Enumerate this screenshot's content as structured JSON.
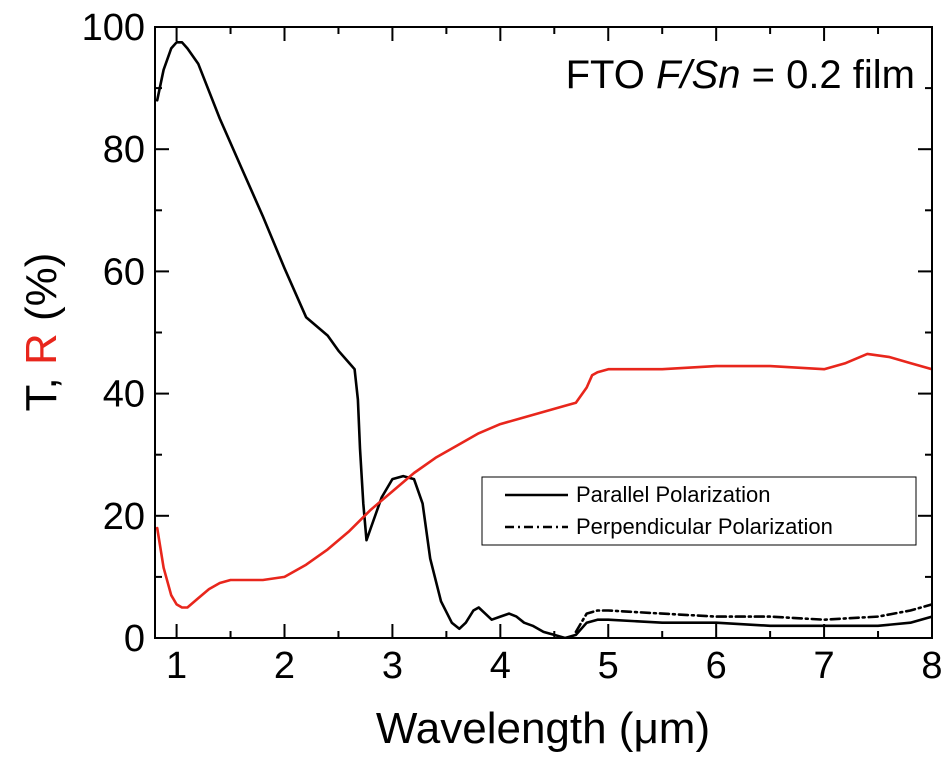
{
  "chart_data": {
    "type": "line",
    "title": "",
    "annotation": {
      "prefix": "FTO ",
      "italic": "F/Sn",
      "suffix": " = 0.2 film"
    },
    "xlabel": "Wavelength (μm)",
    "ylabel": {
      "part1": "T, ",
      "part2": "R",
      "part3": " (%)"
    },
    "xlim": [
      0.8,
      8
    ],
    "ylim": [
      0,
      100
    ],
    "xticks": [
      1,
      2,
      3,
      4,
      5,
      6,
      7,
      8
    ],
    "yticks": [
      0,
      20,
      40,
      60,
      80,
      100
    ],
    "xtick_labels": [
      "1",
      "2",
      "3",
      "4",
      "5",
      "6",
      "7",
      "8"
    ],
    "ytick_labels": [
      "0",
      "20",
      "40",
      "60",
      "80",
      "100"
    ],
    "legend": {
      "position": "lower-right",
      "entries": [
        "Parallel Polarization",
        "Perpendicular Polarization"
      ]
    },
    "colors": {
      "transmission": "#000000",
      "reflection": "#e8261c"
    },
    "series": [
      {
        "name": "Parallel Polarization",
        "quantity": "T",
        "style": "solid",
        "x": [
          0.82,
          0.88,
          0.95,
          1.0,
          1.05,
          1.1,
          1.2,
          1.4,
          1.6,
          1.8,
          2.0,
          2.2,
          2.4,
          2.5,
          2.6,
          2.65,
          2.68,
          2.7,
          2.73,
          2.76,
          2.8,
          2.9,
          3.0,
          3.1,
          3.2,
          3.28,
          3.35,
          3.45,
          3.55,
          3.62,
          3.68,
          3.75,
          3.8,
          3.86,
          3.92,
          4.0,
          4.08,
          4.15,
          4.22,
          4.3,
          4.4,
          4.5,
          4.6,
          4.7,
          4.75,
          4.8,
          4.9,
          5.0,
          5.5,
          6.0,
          6.5,
          7.0,
          7.5,
          7.8,
          8.0
        ],
        "y": [
          88,
          93,
          96.5,
          97.5,
          97.5,
          96.5,
          94,
          85,
          77,
          69,
          60.5,
          52.5,
          49.5,
          47,
          45,
          44,
          39,
          31,
          22,
          16,
          18,
          23,
          26,
          26.5,
          26,
          22,
          13,
          6,
          2.5,
          1.5,
          2.5,
          4.5,
          5,
          4,
          3,
          3.5,
          4,
          3.5,
          2.5,
          2,
          1,
          0.5,
          0,
          0.5,
          1.5,
          2.5,
          3,
          3,
          2.5,
          2.5,
          2,
          2,
          2,
          2.5,
          3.5
        ]
      },
      {
        "name": "Perpendicular Polarization",
        "quantity": "T",
        "style": "dash-dot",
        "x": [
          4.7,
          4.75,
          4.8,
          4.9,
          5.0,
          5.5,
          6.0,
          6.5,
          7.0,
          7.5,
          7.8,
          8.0
        ],
        "y": [
          1,
          2.5,
          4,
          4.5,
          4.5,
          4,
          3.5,
          3.5,
          3,
          3.5,
          4.5,
          5.5
        ]
      },
      {
        "name": "",
        "quantity": "R",
        "style": "solid",
        "x": [
          0.82,
          0.88,
          0.95,
          1.0,
          1.05,
          1.1,
          1.2,
          1.3,
          1.4,
          1.5,
          1.6,
          1.8,
          2.0,
          2.2,
          2.4,
          2.6,
          2.8,
          3.0,
          3.2,
          3.4,
          3.6,
          3.8,
          4.0,
          4.2,
          4.4,
          4.6,
          4.7,
          4.8,
          4.85,
          4.9,
          5.0,
          5.5,
          6.0,
          6.5,
          7.0,
          7.2,
          7.4,
          7.6,
          7.8,
          8.0
        ],
        "y": [
          18,
          11.5,
          7,
          5.5,
          5,
          5,
          6.5,
          8,
          9,
          9.5,
          9.5,
          9.5,
          10,
          12,
          14.5,
          17.5,
          21,
          24,
          27,
          29.5,
          31.5,
          33.5,
          35,
          36,
          37,
          38,
          38.5,
          41,
          43,
          43.5,
          44,
          44,
          44.5,
          44.5,
          44,
          45,
          46.5,
          46,
          45,
          44
        ]
      }
    ]
  }
}
